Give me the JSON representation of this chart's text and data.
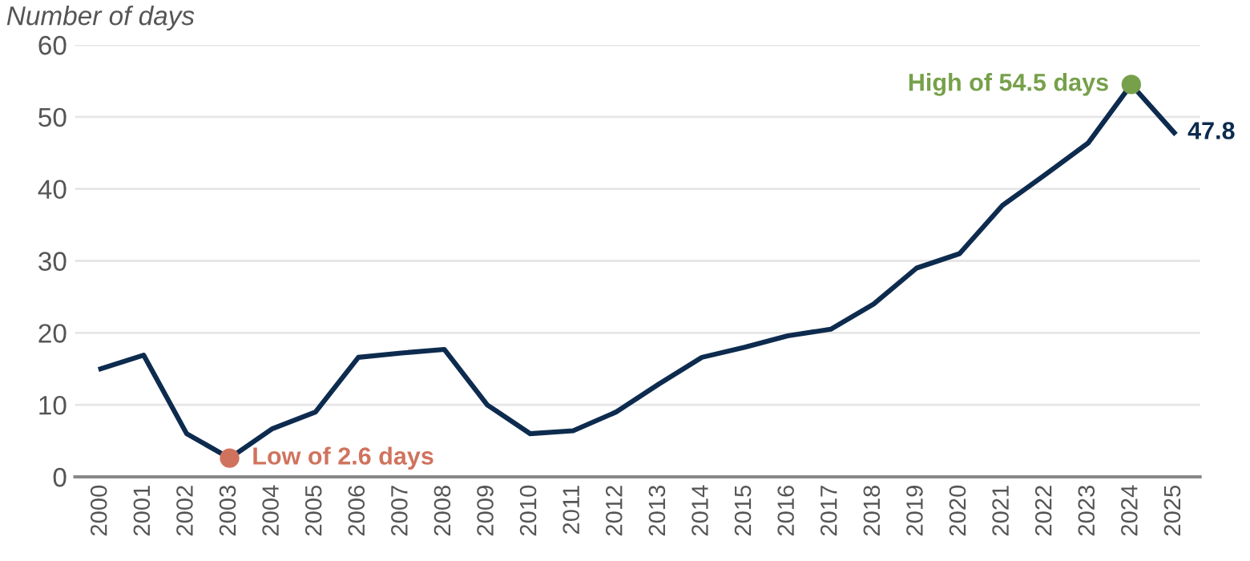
{
  "chart_data": {
    "type": "line",
    "ylabel": "Number of days",
    "categories": [
      "2000",
      "2001",
      "2002",
      "2003",
      "2004",
      "2005",
      "2006",
      "2007",
      "2008",
      "2009",
      "2010",
      "2011",
      "2012",
      "2013",
      "2014",
      "2015",
      "2016",
      "2017",
      "2018",
      "2019",
      "2020",
      "2021",
      "2022",
      "2023",
      "2024",
      "2025"
    ],
    "series": [
      {
        "color": "#0d2b4e",
        "values": [
          15,
          16.9,
          6,
          2.6,
          6.7,
          9,
          16.6,
          17.2,
          17.7,
          10,
          6,
          6.4,
          9,
          12.9,
          16.6,
          18,
          19.6,
          20.5,
          24,
          29,
          31,
          37.7,
          42,
          46.4,
          54.5,
          47.8
        ],
        "value_labels": [
          null,
          null,
          null,
          null,
          null,
          null,
          null,
          null,
          null,
          null,
          null,
          null,
          null,
          null,
          null,
          null,
          null,
          null,
          null,
          null,
          null,
          null,
          null,
          null,
          null,
          "47.8"
        ]
      },
      {
        "type": "scatter",
        "values": [
          null,
          null,
          null,
          2.6,
          null,
          null,
          null,
          null,
          null,
          null,
          null,
          null,
          null,
          null,
          null,
          null,
          null,
          null,
          null,
          null,
          null,
          null,
          null,
          null,
          54.5,
          null
        ],
        "colors": [
          null,
          null,
          null,
          "#d0735e",
          null,
          null,
          null,
          null,
          null,
          null,
          null,
          null,
          null,
          null,
          null,
          null,
          null,
          null,
          null,
          null,
          null,
          null,
          null,
          null,
          "#76a04a",
          null
        ],
        "marker": "circle"
      }
    ],
    "annotations": [
      {
        "text": "Low of 2.6 days",
        "x": "2003",
        "y": 2.6
      },
      {
        "text": "High of 54.5 days",
        "x": "2024",
        "y": 54.5
      }
    ],
    "ylim": [
      0,
      60
    ],
    "yticks": [
      0,
      10,
      20,
      30,
      40,
      50,
      60
    ],
    "grid": "y",
    "legend": false
  }
}
